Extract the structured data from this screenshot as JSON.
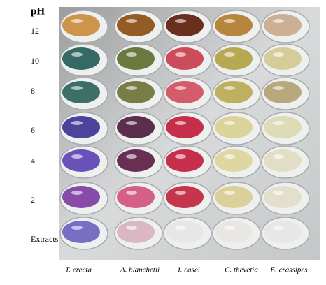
{
  "y_axis_title": "pH",
  "row_labels": [
    "12",
    "10",
    "8",
    "6",
    "4",
    "2",
    "Extracts"
  ],
  "column_labels": [
    "T. erecta",
    "A. blanchetii",
    "I. casei",
    "C. thevetia",
    "E. crassipes"
  ]
}
